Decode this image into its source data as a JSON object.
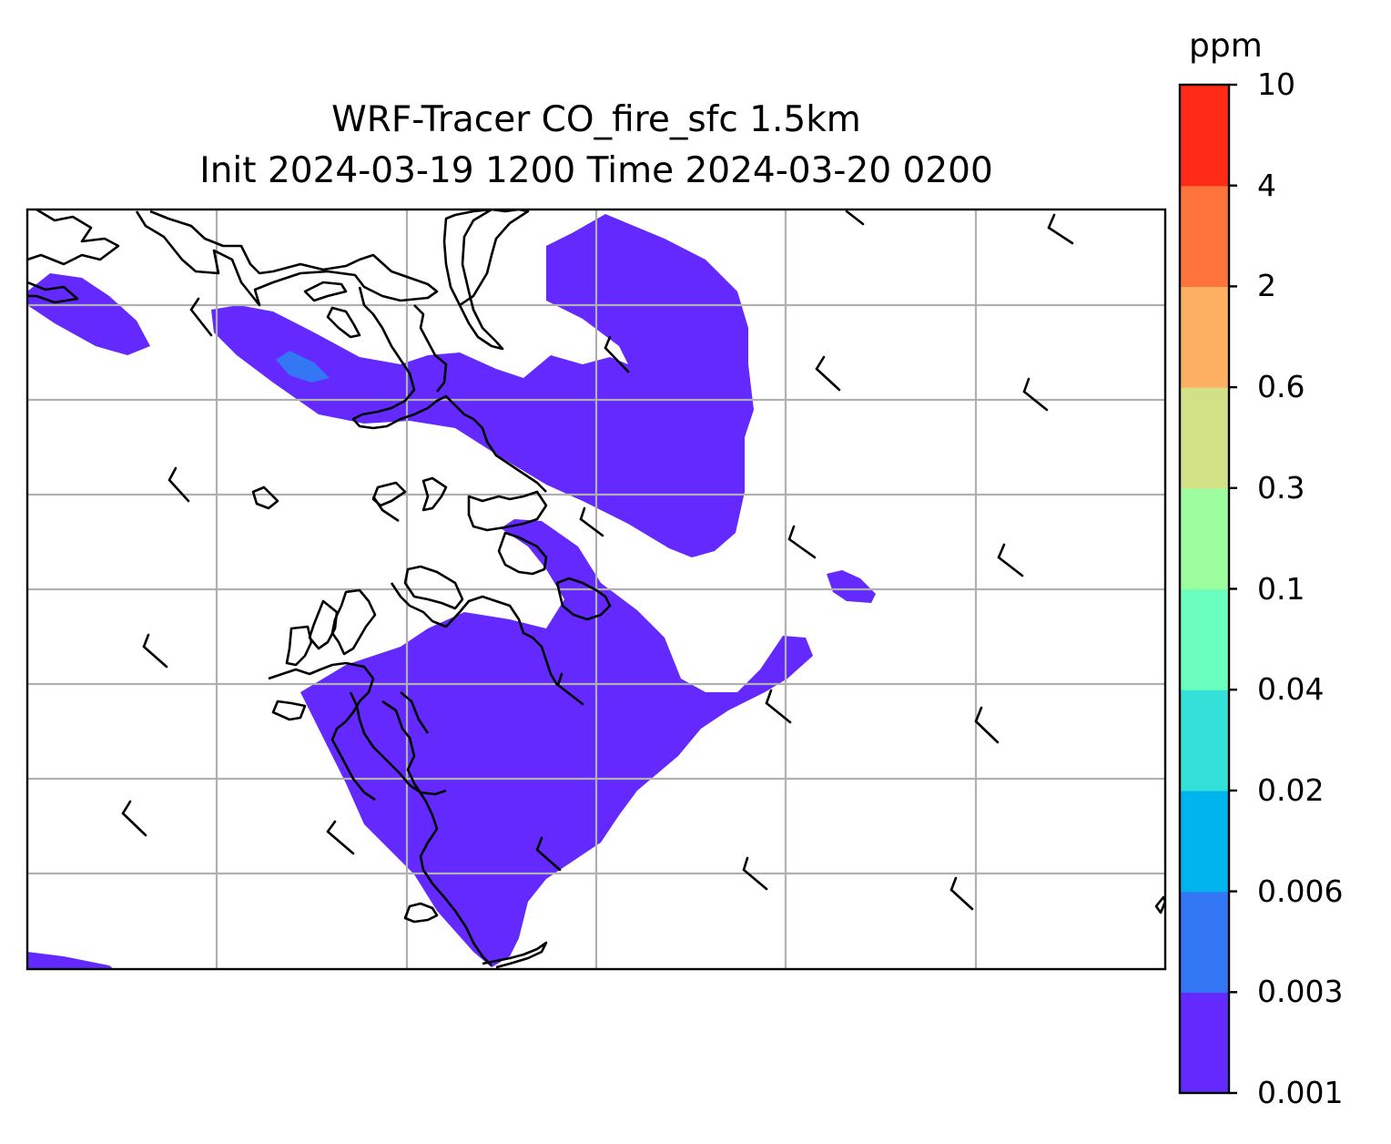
{
  "title": {
    "line1": "WRF-Tracer CO_fire_sfc 1.5km",
    "line2": "Init 2024-03-19 1200 Time 2024-03-20 0200"
  },
  "colorbar": {
    "unit": "ppm",
    "levels": [
      "0.001",
      "0.003",
      "0.006",
      "0.02",
      "0.04",
      "0.1",
      "0.3",
      "0.6",
      "2",
      "4",
      "10"
    ],
    "colors": [
      "#6329ff",
      "#3377f5",
      "#00b5ed",
      "#33e1d8",
      "#6bffbf",
      "#9dfe9f",
      "#d3e186",
      "#fdb062",
      "#ff733d",
      "#ff2a17"
    ]
  },
  "map": {
    "gridlines": true,
    "field": "CO_fire_sfc",
    "field_color": "#6329ff",
    "peak_color": "#3377f5",
    "coastline_color": "#000000",
    "gridline_color": "#b0b0b0"
  }
}
